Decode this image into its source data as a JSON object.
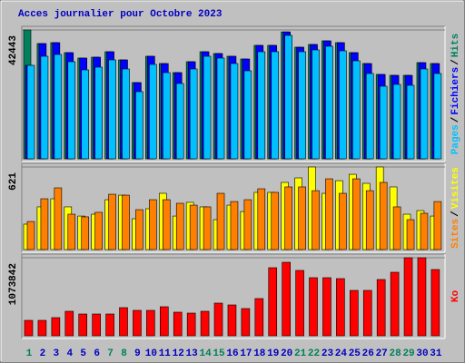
{
  "title": "Acces journalier pour Octobre 2023",
  "legend_separator": "/",
  "chart_data": [
    {
      "type": "bar",
      "ylim": [
        0,
        42443
      ],
      "yticks": [
        42443
      ],
      "series": [
        {
          "name": "Hits",
          "color": "#00805c",
          "values": [
            42443,
            37960,
            38260,
            34971,
            33178,
            33477,
            35270,
            32580,
            25108,
            33776,
            31384,
            28396,
            31982,
            35270,
            34673,
            33776,
            32879,
            37363,
            37363,
            41800,
            36765,
            37662,
            38857,
            38260,
            34971,
            31384,
            27798,
            27499,
            27499,
            31684,
            31384
          ]
        },
        {
          "name": "Fichiers",
          "color": "#0000ff",
          "values": [
            30787,
            37960,
            38260,
            34971,
            33178,
            33477,
            35270,
            32580,
            25108,
            33776,
            31384,
            28396,
            31982,
            35270,
            34673,
            33776,
            32879,
            37363,
            37363,
            41800,
            36765,
            37662,
            38857,
            38260,
            34971,
            31384,
            27798,
            27499,
            27499,
            31684,
            31384
          ]
        },
        {
          "name": "Pages",
          "color": "#00c0ff",
          "values": [
            30787,
            33776,
            34374,
            31982,
            29292,
            30189,
            32580,
            29591,
            22119,
            31086,
            28396,
            24809,
            29591,
            33776,
            33178,
            31384,
            28993,
            35270,
            35270,
            40650,
            35270,
            35868,
            37064,
            35569,
            32281,
            28097,
            23912,
            24510,
            24211,
            29591,
            28097
          ]
        }
      ]
    },
    {
      "type": "bar",
      "ylim": [
        0,
        621
      ],
      "yticks": [
        621
      ],
      "series": [
        {
          "name": "Visites",
          "color": "#ffff00",
          "values": [
            191,
            321,
            382,
            321,
            252,
            266,
            375,
            409,
            232,
            307,
            423,
            252,
            355,
            321,
            225,
            334,
            286,
            430,
            430,
            505,
            539,
            621,
            423,
            518,
            566,
            498,
            621,
            471,
            266,
            293,
            252
          ]
        },
        {
          "name": "Sites",
          "color": "#ff8000",
          "values": [
            211,
            382,
            464,
            266,
            246,
            280,
            416,
            409,
            300,
            375,
            375,
            348,
            334,
            321,
            423,
            361,
            375,
            457,
            430,
            471,
            471,
            443,
            532,
            423,
            532,
            443,
            505,
            321,
            225,
            273,
            361
          ]
        }
      ]
    },
    {
      "type": "bar",
      "ylim": [
        0,
        1073842
      ],
      "yticks": [
        1073842
      ],
      "categories": [
        "1",
        "2",
        "3",
        "4",
        "5",
        "6",
        "7",
        "8",
        "9",
        "10",
        "11",
        "12",
        "13",
        "14",
        "15",
        "16",
        "17",
        "18",
        "19",
        "20",
        "21",
        "22",
        "23",
        "24",
        "25",
        "26",
        "27",
        "28",
        "29",
        "30",
        "31"
      ],
      "label_colors": [
        "#00805c",
        "#0000c0",
        "#0000c0",
        "#0000c0",
        "#0000c0",
        "#0000c0",
        "#00805c",
        "#00805c",
        "#0000c0",
        "#0000c0",
        "#0000c0",
        "#0000c0",
        "#0000c0",
        "#00805c",
        "#00805c",
        "#0000c0",
        "#0000c0",
        "#0000c0",
        "#0000c0",
        "#0000c0",
        "#00805c",
        "#00805c",
        "#0000c0",
        "#0000c0",
        "#0000c0",
        "#0000c0",
        "#0000c0",
        "#00805c",
        "#00805c",
        "#0000c0",
        "#0000c0"
      ],
      "series": [
        {
          "name": "Ko",
          "color": "#ff0000",
          "values": [
            212266,
            212266,
            249729,
            337134,
            299671,
            299671,
            299671,
            387076,
            349614,
            349614,
            399561,
            324649,
            312161,
            337134,
            449512,
            424539,
            374597,
            511950,
            936490,
            1011410,
            899030,
            799140,
            799140,
            786650,
            624320,
            624320,
            774170,
            874050,
            1073842,
            1073842,
            911530
          ]
        }
      ]
    }
  ]
}
